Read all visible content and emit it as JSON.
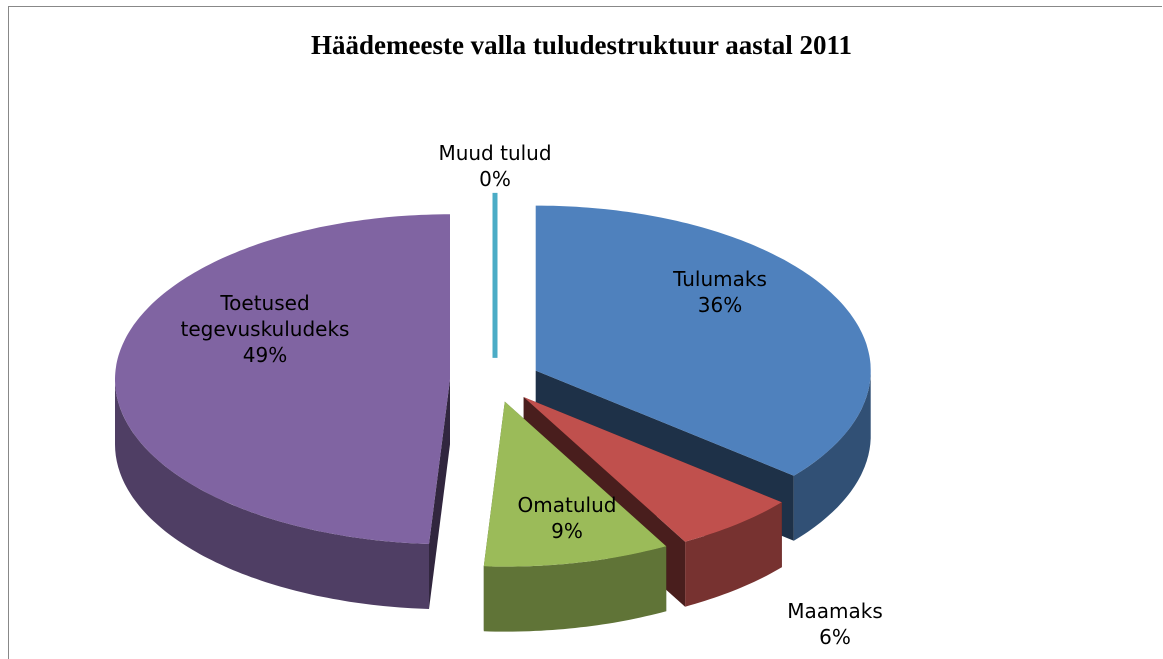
{
  "chart_data": {
    "type": "pie3d",
    "title": "Häädemeeste valla tuludestruktuur aastal 2011",
    "categories": [
      "Tulumaks",
      "Maamaks",
      "Omatulud",
      "Toetused tegevuskuludeks",
      "Muud tulud"
    ],
    "values": [
      36,
      6,
      9,
      49,
      0
    ],
    "value_labels": [
      "36%",
      "6%",
      "9%",
      "49%",
      "0%"
    ],
    "colors": [
      "#4f81bd",
      "#c0504d",
      "#9bbb59",
      "#8064a2",
      "#4bacc6"
    ]
  }
}
